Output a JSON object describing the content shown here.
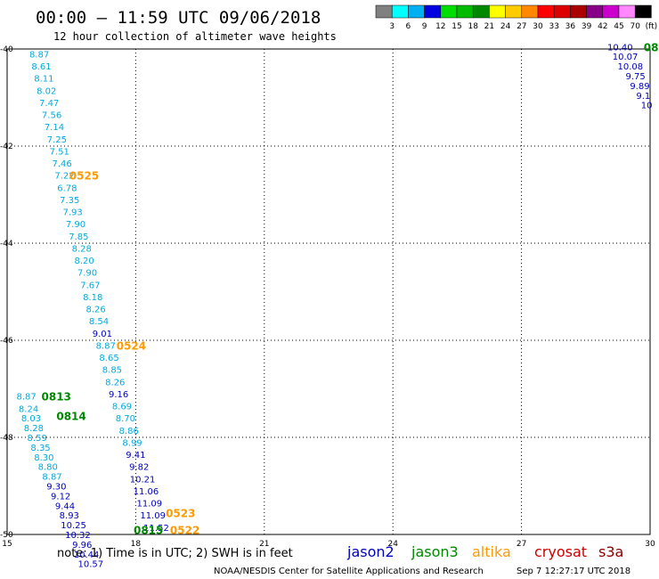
{
  "header": {
    "title": "00:00 – 11:59 UTC 09/06/2018",
    "subtitle": "12 hour collection of altimeter wave heights"
  },
  "color_scale": {
    "swatches": [
      "#808080",
      "#00ffff",
      "#00b0f0",
      "#0000e0",
      "#00dd00",
      "#00bb00",
      "#008800",
      "#ffff00",
      "#ffcc00",
      "#ff8800",
      "#ff0000",
      "#dd0000",
      "#aa0000",
      "#880088",
      "#cc00cc",
      "#ff88ff",
      "#000000"
    ],
    "labels": [
      "3",
      "6",
      "9",
      "12",
      "15",
      "18",
      "21",
      "24",
      "27",
      "30",
      "33",
      "36",
      "39",
      "42",
      "45",
      "70",
      "(ft)"
    ]
  },
  "axes": {
    "x_ticks": [
      "15",
      "18",
      "21",
      "24",
      "27",
      "30"
    ],
    "y_ticks": [
      "-40",
      "-42",
      "-44",
      "-46",
      "-48",
      "-50"
    ]
  },
  "colors": {
    "jason2": "#0000bb",
    "jason3": "#008800",
    "altika": "#ff9900",
    "cryosat": "#cc0000",
    "s3a": "#880000",
    "cyan_track": "#00aadd"
  },
  "chart_data": {
    "type": "scatter",
    "title": "00:00 – 11:59 UTC 09/06/2018",
    "subtitle": "12 hour collection of altimeter wave heights",
    "xlim": [
      15,
      30
    ],
    "ylim": [
      -50,
      -40
    ],
    "x_ticks": [
      15,
      18,
      21,
      24,
      27,
      30
    ],
    "y_ticks": [
      -40,
      -42,
      -44,
      -46,
      -48,
      -50
    ],
    "grid": true,
    "unit": "ft",
    "series": [
      {
        "name": "jason2",
        "color": "#00aadd",
        "points": [
          {
            "x": 15.75,
            "y": -40.1,
            "v": "8.87"
          },
          {
            "x": 15.8,
            "y": -40.35,
            "v": "8.61"
          },
          {
            "x": 15.86,
            "y": -40.6,
            "v": "8.11"
          },
          {
            "x": 15.92,
            "y": -40.85,
            "v": "8.02"
          },
          {
            "x": 15.98,
            "y": -41.1,
            "v": "7.47"
          },
          {
            "x": 16.04,
            "y": -41.35,
            "v": "7.56"
          },
          {
            "x": 16.1,
            "y": -41.6,
            "v": "7.14"
          },
          {
            "x": 16.16,
            "y": -41.85,
            "v": "7.25"
          },
          {
            "x": 16.22,
            "y": -42.1,
            "v": "7.51"
          },
          {
            "x": 16.28,
            "y": -42.35,
            "v": "7.46"
          },
          {
            "x": 16.34,
            "y": -42.6,
            "v": "7.22"
          },
          {
            "x": 16.4,
            "y": -42.85,
            "v": "6.78"
          },
          {
            "x": 16.46,
            "y": -43.1,
            "v": "7.35"
          },
          {
            "x": 16.53,
            "y": -43.35,
            "v": "7.93"
          },
          {
            "x": 16.6,
            "y": -43.6,
            "v": "7.90"
          },
          {
            "x": 16.67,
            "y": -43.85,
            "v": "7.85"
          },
          {
            "x": 16.74,
            "y": -44.1,
            "v": "8.28"
          },
          {
            "x": 16.8,
            "y": -44.35,
            "v": "8.20"
          },
          {
            "x": 16.87,
            "y": -44.6,
            "v": "7.90"
          },
          {
            "x": 16.94,
            "y": -44.85,
            "v": "7.67"
          },
          {
            "x": 17.0,
            "y": -45.1,
            "v": "8.18"
          },
          {
            "x": 17.07,
            "y": -45.35,
            "v": "8.26"
          },
          {
            "x": 17.14,
            "y": -45.6,
            "v": "8.54"
          },
          {
            "x": 17.3,
            "y": -46.1,
            "v": "8.87"
          },
          {
            "x": 17.38,
            "y": -46.35,
            "v": "8.65"
          },
          {
            "x": 17.45,
            "y": -46.6,
            "v": "8.85"
          },
          {
            "x": 17.52,
            "y": -46.85,
            "v": "8.26"
          },
          {
            "x": 17.68,
            "y": -47.35,
            "v": "8.69"
          },
          {
            "x": 17.76,
            "y": -47.6,
            "v": "8.70"
          },
          {
            "x": 17.84,
            "y": -47.85,
            "v": "8.86"
          },
          {
            "x": 17.92,
            "y": -48.1,
            "v": "8.99"
          },
          {
            "x": 15.45,
            "y": -47.15,
            "v": "8.87"
          },
          {
            "x": 15.5,
            "y": -47.4,
            "v": "8.24"
          },
          {
            "x": 15.56,
            "y": -47.6,
            "v": "8.03"
          },
          {
            "x": 15.62,
            "y": -47.8,
            "v": "8.28"
          },
          {
            "x": 15.7,
            "y": -48.0,
            "v": "8.59"
          },
          {
            "x": 15.78,
            "y": -48.2,
            "v": "8.35"
          },
          {
            "x": 15.86,
            "y": -48.4,
            "v": "8.30"
          },
          {
            "x": 15.95,
            "y": -48.6,
            "v": "8.80"
          },
          {
            "x": 16.05,
            "y": -48.8,
            "v": "8.87"
          }
        ]
      },
      {
        "name": "jason2",
        "color": "#0000bb",
        "points": [
          {
            "x": 17.22,
            "y": -45.85,
            "v": "9.01"
          },
          {
            "x": 17.6,
            "y": -47.1,
            "v": "9.16"
          },
          {
            "x": 18.0,
            "y": -48.35,
            "v": "9.41"
          },
          {
            "x": 18.08,
            "y": -48.6,
            "v": "9.82"
          },
          {
            "x": 18.16,
            "y": -48.85,
            "v": "10.21"
          },
          {
            "x": 18.24,
            "y": -49.1,
            "v": "11.06"
          },
          {
            "x": 18.32,
            "y": -49.35,
            "v": "11.09"
          },
          {
            "x": 18.4,
            "y": -49.6,
            "v": "11.09"
          },
          {
            "x": 18.48,
            "y": -49.85,
            "v": "11.52"
          },
          {
            "x": 16.15,
            "y": -49.0,
            "v": "9.30"
          },
          {
            "x": 16.25,
            "y": -49.2,
            "v": "9.12"
          },
          {
            "x": 16.35,
            "y": -49.4,
            "v": "9.44"
          },
          {
            "x": 16.45,
            "y": -49.6,
            "v": "8.93"
          },
          {
            "x": 16.55,
            "y": -49.8,
            "v": "10.25"
          },
          {
            "x": 16.65,
            "y": -50.0,
            "v": "10.32"
          },
          {
            "x": 16.75,
            "y": -50.2,
            "v": "9.96"
          },
          {
            "x": 16.85,
            "y": -50.4,
            "v": "10.44"
          },
          {
            "x": 16.95,
            "y": -50.6,
            "v": "10.57"
          },
          {
            "x": 29.3,
            "y": -39.95,
            "v": "10.40"
          },
          {
            "x": 29.42,
            "y": -40.15,
            "v": "10.07"
          },
          {
            "x": 29.54,
            "y": -40.35,
            "v": "10.08"
          },
          {
            "x": 29.66,
            "y": -40.55,
            "v": "9.75"
          },
          {
            "x": 29.76,
            "y": -40.75,
            "v": "9.89"
          },
          {
            "x": 29.84,
            "y": -40.95,
            "v": "9.1"
          },
          {
            "x": 29.92,
            "y": -41.15,
            "v": "10"
          }
        ]
      }
    ],
    "pass_labels": [
      {
        "x": 16.45,
        "y": -42.6,
        "text": "0525",
        "color": "#ff9900"
      },
      {
        "x": 17.55,
        "y": -46.1,
        "text": "0524",
        "color": "#ff9900"
      },
      {
        "x": 15.8,
        "y": -47.15,
        "text": "0813",
        "color": "#008800"
      },
      {
        "x": 16.15,
        "y": -47.55,
        "text": "0814",
        "color": "#008800"
      },
      {
        "x": 18.7,
        "y": -49.55,
        "text": "0523",
        "color": "#ff9900"
      },
      {
        "x": 18.8,
        "y": -49.9,
        "text": "0522",
        "color": "#ff9900"
      },
      {
        "x": 17.95,
        "y": -49.9,
        "text": "0815",
        "color": "#008800"
      },
      {
        "x": 29.85,
        "y": -39.95,
        "text": "08",
        "color": "#008800"
      }
    ]
  },
  "footer": {
    "note": "note: 1) Time is in UTC; 2) SWH is in feet",
    "satellites": [
      {
        "name": "jason2",
        "color": "#0000bb"
      },
      {
        "name": "jason3",
        "color": "#008800"
      },
      {
        "name": "altika",
        "color": "#ff9900"
      },
      {
        "name": "cryosat",
        "color": "#cc0000"
      },
      {
        "name": "s3a",
        "color": "#880000"
      }
    ],
    "credit": "NOAA/NESDIS Center for Satellite Applications and Research",
    "timestamp": "Sep  7 12:27:17 UTC 2018"
  }
}
